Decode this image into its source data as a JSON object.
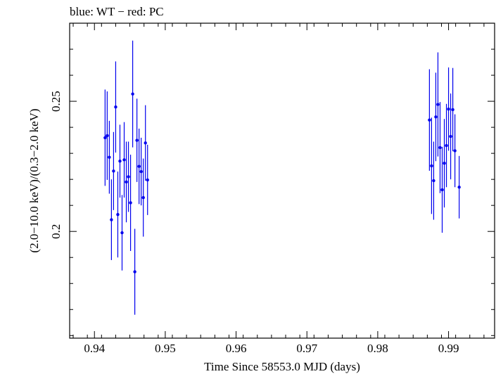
{
  "header": {
    "text": "blue: WT − red: PC"
  },
  "chart_data": {
    "type": "scatter",
    "title": "blue: WT − red: PC",
    "xlabel": "Time Since 58553.0 MJD (days)",
    "ylabel": "(2.0−10.0 keV)/(0.3−2.0 keV)",
    "xlim": [
      0.9365,
      0.9965
    ],
    "ylim": [
      0.159,
      0.28
    ],
    "x_ticks": [
      0.94,
      0.95,
      0.96,
      0.97,
      0.98,
      0.99
    ],
    "x_tick_labels": [
      "0.94",
      "0.95",
      "0.96",
      "0.97",
      "0.98",
      "0.99"
    ],
    "y_ticks": [
      0.2,
      0.25
    ],
    "y_tick_labels": [
      "0.2",
      "0.25"
    ],
    "grid": false,
    "colors": {
      "WT": "#0000ee",
      "PC": "#ff0000",
      "axes": "#000000"
    },
    "series": [
      {
        "name": "WT",
        "color": "#0000ee",
        "points": [
          {
            "x": 0.9415,
            "y": 0.236,
            "err": 0.0185
          },
          {
            "x": 0.9418,
            "y": 0.2368,
            "err": 0.017
          },
          {
            "x": 0.9421,
            "y": 0.2285,
            "err": 0.014
          },
          {
            "x": 0.9424,
            "y": 0.2045,
            "err": 0.0155
          },
          {
            "x": 0.9427,
            "y": 0.2232,
            "err": 0.015
          },
          {
            "x": 0.943,
            "y": 0.2478,
            "err": 0.0175
          },
          {
            "x": 0.9433,
            "y": 0.2065,
            "err": 0.0165
          },
          {
            "x": 0.9436,
            "y": 0.227,
            "err": 0.014
          },
          {
            "x": 0.9439,
            "y": 0.1995,
            "err": 0.0145
          },
          {
            "x": 0.9442,
            "y": 0.2275,
            "err": 0.0145
          },
          {
            "x": 0.9445,
            "y": 0.219,
            "err": 0.0155
          },
          {
            "x": 0.9448,
            "y": 0.221,
            "err": 0.0135
          },
          {
            "x": 0.9451,
            "y": 0.211,
            "err": 0.0185
          },
          {
            "x": 0.9454,
            "y": 0.2528,
            "err": 0.0205
          },
          {
            "x": 0.9457,
            "y": 0.1845,
            "err": 0.0165
          },
          {
            "x": 0.946,
            "y": 0.235,
            "err": 0.016
          },
          {
            "x": 0.9463,
            "y": 0.225,
            "err": 0.0145
          },
          {
            "x": 0.9466,
            "y": 0.223,
            "err": 0.013
          },
          {
            "x": 0.9469,
            "y": 0.213,
            "err": 0.015
          },
          {
            "x": 0.9472,
            "y": 0.234,
            "err": 0.0145
          },
          {
            "x": 0.9475,
            "y": 0.2198,
            "err": 0.0135
          }
        ]
      },
      {
        "name": "WT",
        "color": "#0000ee",
        "points": [
          {
            "x": 0.9873,
            "y": 0.2428,
            "err": 0.0195
          },
          {
            "x": 0.9876,
            "y": 0.2252,
            "err": 0.0185
          },
          {
            "x": 0.9879,
            "y": 0.2195,
            "err": 0.015
          },
          {
            "x": 0.9882,
            "y": 0.244,
            "err": 0.017
          },
          {
            "x": 0.9885,
            "y": 0.2488,
            "err": 0.02
          },
          {
            "x": 0.9888,
            "y": 0.2322,
            "err": 0.0175
          },
          {
            "x": 0.9891,
            "y": 0.216,
            "err": 0.0165
          },
          {
            "x": 0.9894,
            "y": 0.2262,
            "err": 0.017
          },
          {
            "x": 0.9897,
            "y": 0.233,
            "err": 0.016
          },
          {
            "x": 0.99,
            "y": 0.247,
            "err": 0.016
          },
          {
            "x": 0.9903,
            "y": 0.2365,
            "err": 0.0165
          },
          {
            "x": 0.9906,
            "y": 0.2468,
            "err": 0.016
          },
          {
            "x": 0.9909,
            "y": 0.231,
            "err": 0.014
          },
          {
            "x": 0.9915,
            "y": 0.217,
            "err": 0.012
          }
        ]
      }
    ]
  }
}
